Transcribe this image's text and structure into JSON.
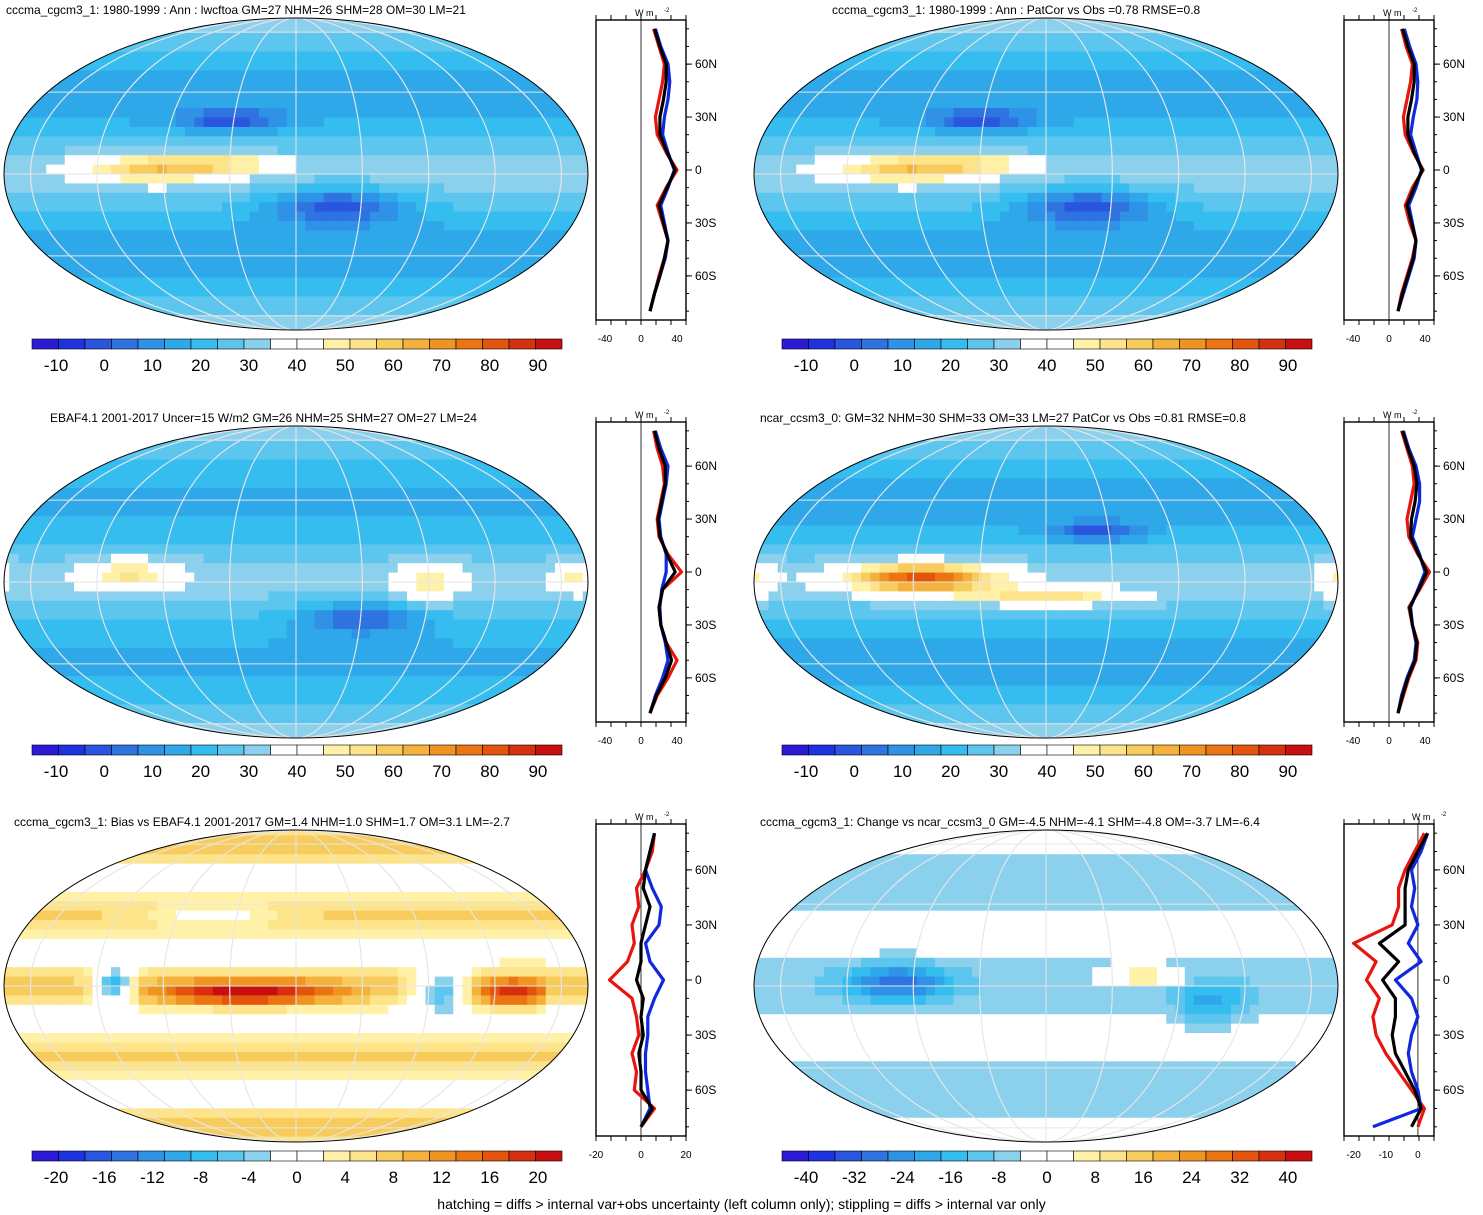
{
  "footer": "hatching = diffs > internal var+obs uncertainty (left column only); stippling = diffs > internal var only",
  "zonal_units": "W m",
  "zonal_units_sup": "-2",
  "lat_ticks": [
    "60N",
    "30N",
    "0",
    "30S",
    "60S"
  ],
  "colors": {
    "palette": [
      "#2c1bd6",
      "#1f32e0",
      "#2a55df",
      "#2e73e0",
      "#2f92e6",
      "#2fa8ea",
      "#35bdf0",
      "#5dc6ee",
      "#8bd0ec",
      "#ffffff",
      "#ffffff",
      "#fff2a8",
      "#fde38a",
      "#f8cc5c",
      "#f4b13b",
      "#ef9421",
      "#eb7512",
      "#e3550f",
      "#d6300e",
      "#c80e0e"
    ],
    "model": "#e8150f",
    "obs": "#1028e0",
    "mmm": "#000000"
  },
  "chart_data": [
    {
      "type": "heatmap",
      "title": "cccma_cgcm3_1: 1980-1999 : Ann : lwcftoa GM=27 NHM=26 SHM=28 OM=30 LM=21",
      "colorbar": {
        "ticks": [
          "-10",
          "0",
          "10",
          "20",
          "30",
          "40",
          "50",
          "60",
          "70",
          "80",
          "90"
        ],
        "range": [
          -15,
          95
        ]
      },
      "zonal_profile": {
        "x_ticks": [
          "-40",
          "0",
          "40"
        ],
        "xlim": [
          -50,
          50
        ],
        "lat": [
          -80,
          -70,
          -60,
          -50,
          -40,
          -30,
          -20,
          -10,
          0,
          10,
          20,
          30,
          40,
          50,
          60,
          70,
          80
        ],
        "series": [
          {
            "color": "red",
            "values": [
              10,
              15,
              20,
              26,
              30,
              24,
              18,
              28,
              40,
              28,
              18,
              16,
              20,
              24,
              26,
              20,
              14
            ]
          },
          {
            "color": "blue",
            "values": [
              10,
              15,
              21,
              27,
              30,
              26,
              22,
              30,
              37,
              30,
              24,
              26,
              30,
              32,
              30,
              22,
              16
            ]
          },
          {
            "color": "black",
            "values": [
              10,
              15,
              21,
              26,
              30,
              25,
              20,
              29,
              38,
              29,
              21,
              21,
              25,
              28,
              28,
              21,
              15
            ]
          }
        ]
      }
    },
    {
      "type": "heatmap",
      "title": "cccma_cgcm3_1: 1980-1999 : Ann : PatCor vs Obs =0.78 RMSE=0.8",
      "colorbar": {
        "ticks": [
          "-10",
          "0",
          "10",
          "20",
          "30",
          "40",
          "50",
          "60",
          "70",
          "80",
          "90"
        ],
        "range": [
          -15,
          95
        ]
      },
      "zonal_profile": {
        "x_ticks": [
          "-40",
          "0",
          "40"
        ],
        "xlim": [
          -50,
          50
        ],
        "lat": [
          -80,
          -70,
          -60,
          -50,
          -40,
          -30,
          -20,
          -10,
          0,
          10,
          20,
          30,
          40,
          50,
          60,
          70,
          80
        ],
        "series": [
          {
            "color": "red",
            "values": [
              10,
              14,
              20,
              26,
              30,
              23,
              18,
              26,
              38,
              27,
              18,
              16,
              20,
              24,
              26,
              19,
              14
            ]
          },
          {
            "color": "blue",
            "values": [
              10,
              16,
              22,
              28,
              30,
              26,
              22,
              30,
              36,
              30,
              24,
              27,
              31,
              32,
              30,
              23,
              17
            ]
          },
          {
            "color": "black",
            "values": [
              10,
              15,
              21,
              27,
              30,
              25,
              20,
              28,
              37,
              28,
              21,
              21,
              25,
              28,
              28,
              21,
              15
            ]
          }
        ]
      }
    },
    {
      "type": "heatmap",
      "title": "EBAF4.1 2001-2017 Uncer=15 W/m2 GM=26 NHM=25 SHM=27 OM=27 LM=24",
      "colorbar": {
        "ticks": [
          "-10",
          "0",
          "10",
          "20",
          "30",
          "40",
          "50",
          "60",
          "70",
          "80",
          "90"
        ],
        "range": [
          -15,
          95
        ]
      },
      "zonal_profile": {
        "x_ticks": [
          "-40",
          "0",
          "40"
        ],
        "xlim": [
          -50,
          50
        ],
        "lat": [
          -80,
          -70,
          -60,
          -50,
          -40,
          -30,
          -20,
          -10,
          0,
          10,
          20,
          30,
          40,
          50,
          60,
          70,
          80
        ],
        "series": [
          {
            "color": "red",
            "values": [
              10,
              18,
              30,
              40,
              28,
              22,
              20,
              24,
              45,
              30,
              20,
              18,
              22,
              26,
              24,
              18,
              14
            ]
          },
          {
            "color": "blue",
            "values": [
              10,
              16,
              24,
              30,
              27,
              22,
              21,
              23,
              28,
              28,
              22,
              20,
              24,
              28,
              30,
              22,
              16
            ]
          },
          {
            "color": "black",
            "values": [
              10,
              17,
              27,
              34,
              28,
              22,
              20,
              24,
              38,
              29,
              21,
              19,
              23,
              27,
              27,
              20,
              15
            ]
          }
        ]
      }
    },
    {
      "type": "heatmap",
      "title": "ncar_ccsm3_0: GM=32 NHM=30 SHM=33 OM=33 LM=27 PatCor vs Obs =0.81 RMSE=0.8",
      "colorbar": {
        "ticks": [
          "-10",
          "0",
          "10",
          "20",
          "30",
          "40",
          "50",
          "60",
          "70",
          "80",
          "90"
        ],
        "range": [
          -15,
          95
        ]
      },
      "zonal_profile": {
        "x_ticks": [
          "-40",
          "0",
          "40"
        ],
        "xlim": [
          -50,
          50
        ],
        "lat": [
          -80,
          -70,
          -60,
          -50,
          -40,
          -30,
          -20,
          -10,
          0,
          10,
          20,
          30,
          40,
          50,
          60,
          70,
          80
        ],
        "series": [
          {
            "color": "red",
            "values": [
              10,
              16,
              22,
              30,
              32,
              26,
              22,
              34,
              45,
              32,
              22,
              20,
              24,
              28,
              26,
              20,
              14
            ]
          },
          {
            "color": "blue",
            "values": [
              10,
              14,
              20,
              28,
              30,
              26,
              24,
              32,
              40,
              34,
              26,
              30,
              34,
              34,
              30,
              22,
              16
            ]
          },
          {
            "color": "black",
            "values": [
              10,
              15,
              21,
              29,
              31,
              26,
              23,
              33,
              42,
              33,
              24,
              25,
              29,
              31,
              28,
              21,
              15
            ]
          }
        ]
      }
    },
    {
      "type": "heatmap",
      "title": "cccma_cgcm3_1: Bias vs EBAF4.1 2001-2017 GM=1.4 NHM=1.0 SHM=1.7 OM=3.1 LM=-2.7",
      "colorbar": {
        "ticks": [
          "-20",
          "-16",
          "-12",
          "-8",
          "-4",
          "0",
          "4",
          "8",
          "12",
          "16",
          "20"
        ],
        "range": [
          -22,
          22
        ]
      },
      "zonal_profile": {
        "x_ticks": [
          "-20",
          "0",
          "20"
        ],
        "xlim": [
          -20,
          20
        ],
        "lat": [
          -80,
          -70,
          -60,
          -50,
          -40,
          -30,
          -20,
          -10,
          0,
          10,
          20,
          30,
          40,
          50,
          60,
          70,
          80
        ],
        "series": [
          {
            "color": "red",
            "values": [
              0,
              6,
              -3,
              -2,
              -4,
              -1,
              -2,
              -4,
              -14,
              -6,
              -3,
              -4,
              -1,
              -2,
              2,
              5,
              6
            ]
          },
          {
            "color": "blue",
            "values": [
              0,
              4,
              3,
              2,
              2,
              3,
              3,
              6,
              10,
              4,
              2,
              8,
              9,
              5,
              2,
              4,
              6
            ]
          },
          {
            "color": "black",
            "values": [
              0,
              5,
              0,
              0,
              -1,
              1,
              0,
              1,
              -2,
              0,
              0,
              2,
              4,
              1,
              2,
              4,
              6
            ]
          }
        ]
      }
    },
    {
      "type": "heatmap",
      "title": "cccma_cgcm3_1: Change vs ncar_ccsm3_0 GM=-4.5 NHM=-4.1 SHM=-4.8 OM=-3.7 LM=-6.4",
      "colorbar": {
        "ticks": [
          "-40",
          "-32",
          "-24",
          "-16",
          "-8",
          "0",
          "8",
          "16",
          "24",
          "32",
          "40"
        ],
        "range": [
          -44,
          44
        ]
      },
      "zonal_profile": {
        "x_ticks": [
          "-20",
          "-10",
          "0"
        ],
        "xlim": [
          -23,
          5
        ],
        "lat": [
          -80,
          -70,
          -60,
          -50,
          -40,
          -30,
          -20,
          -10,
          0,
          10,
          20,
          30,
          40,
          50,
          60,
          70,
          80
        ],
        "series": [
          {
            "color": "red",
            "values": [
              0,
              2,
              -2,
              -6,
              -10,
              -13,
              -14,
              -12,
              -16,
              -13,
              -20,
              -8,
              -6,
              -6,
              -4,
              -1,
              2
            ]
          },
          {
            "color": "blue",
            "values": [
              -14,
              1,
              0,
              -2,
              -3,
              -2,
              0,
              -2,
              -7,
              1,
              -3,
              0,
              -2,
              -1,
              -2,
              1,
              3
            ]
          },
          {
            "color": "black",
            "values": [
              -2,
              1,
              -1,
              -4,
              -7,
              -8,
              -7,
              -7,
              -11,
              -6,
              -12,
              -4,
              -4,
              -4,
              -3,
              0,
              3
            ]
          }
        ]
      }
    }
  ]
}
